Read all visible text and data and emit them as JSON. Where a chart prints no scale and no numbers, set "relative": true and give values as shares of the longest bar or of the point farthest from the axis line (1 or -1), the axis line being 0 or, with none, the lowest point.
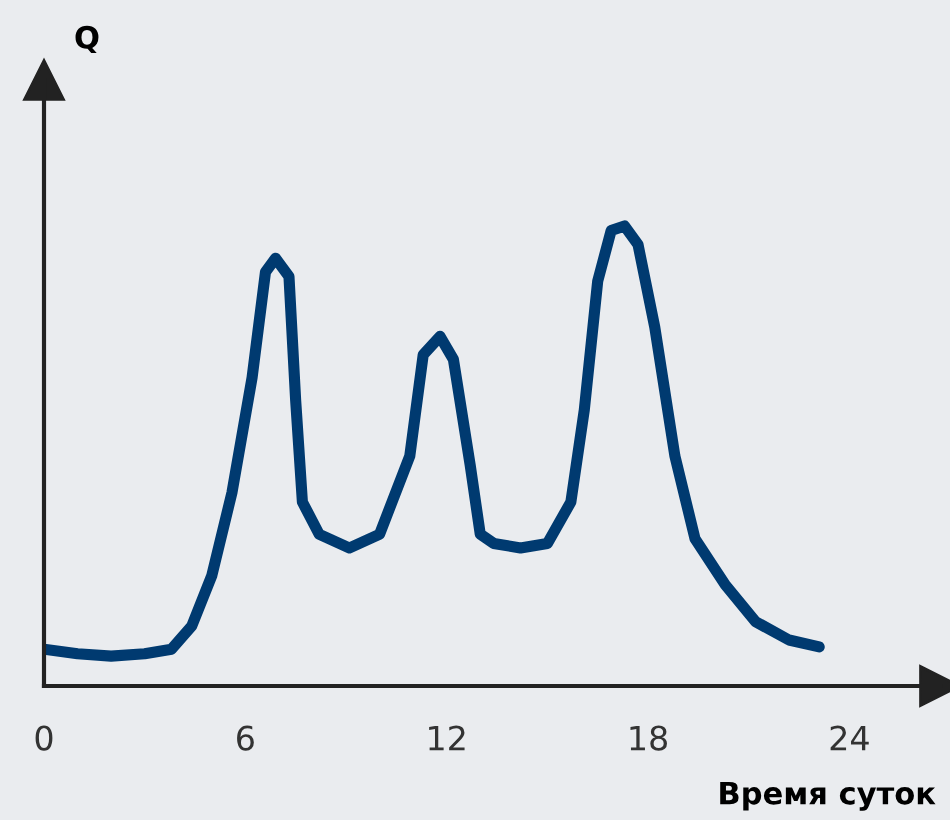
{
  "chart_data": {
    "type": "line",
    "annotations": [
      "Q"
    ],
    "xlabel": "Время суток",
    "relative": true,
    "xlim": [
      0,
      26.7
    ],
    "xticks": [
      0,
      6,
      12,
      18,
      24
    ],
    "grid": false,
    "legend": false,
    "marker": "none",
    "line_style": "solid",
    "series": [
      {
        "color": "#003a70",
        "x": [
          0,
          1,
          2,
          3,
          3.8,
          4.4,
          5.0,
          5.6,
          6.2,
          6.6,
          6.9,
          7.3,
          7.5,
          7.7,
          8.2,
          9.1,
          10.0,
          10.9,
          11.3,
          11.8,
          12.2,
          12.7,
          13.0,
          13.4,
          14.2,
          15.0,
          15.7,
          16.1,
          16.5,
          16.9,
          17.3,
          17.7,
          18.2,
          18.8,
          19.4,
          20.3,
          21.2,
          22.2,
          23.1
        ],
        "values": [
          0.08,
          0.07,
          0.065,
          0.07,
          0.08,
          0.13,
          0.24,
          0.42,
          0.67,
          0.9,
          0.93,
          0.89,
          0.62,
          0.4,
          0.33,
          0.3,
          0.33,
          0.5,
          0.72,
          0.76,
          0.71,
          0.48,
          0.33,
          0.31,
          0.3,
          0.31,
          0.4,
          0.6,
          0.88,
          0.99,
          1.0,
          0.96,
          0.78,
          0.5,
          0.32,
          0.22,
          0.14,
          0.1,
          0.085
        ]
      }
    ]
  }
}
